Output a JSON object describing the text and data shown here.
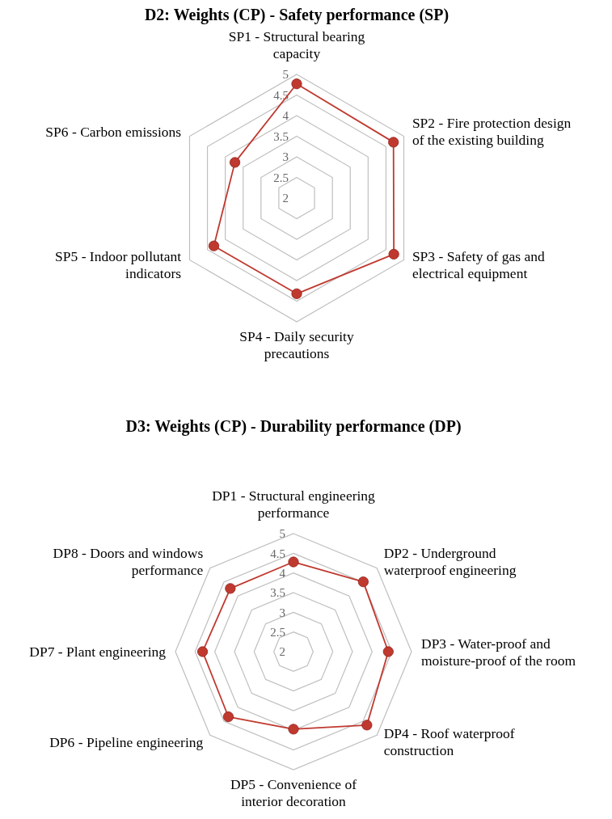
{
  "chart_data": [
    {
      "type": "radar",
      "title": "D2: Weights (CP) - Safety performance (SP)",
      "categories": [
        "SP1 - Structural bearing capacity",
        "SP2 - Fire protection design of the existing building",
        "SP3 - Safety of gas and electrical equipment",
        "SP4 - Daily security precautions",
        "SP5 - Indoor pollutant indicators",
        "SP6 - Carbon emissions"
      ],
      "series": [
        {
          "color": "#c0392f",
          "values": [
            4.77,
            4.71,
            4.72,
            4.32,
            4.32,
            3.73
          ]
        }
      ],
      "ylim": [
        2,
        5
      ],
      "yticks": [
        2,
        2.5,
        3,
        3.5,
        4,
        4.5,
        5
      ],
      "grid": true,
      "marker": "circle"
    },
    {
      "type": "radar",
      "title": "D3: Weights (CP) - Durability performance (DP)",
      "categories": [
        "DP1 - Structural engineering performance",
        "DP2 - Underground waterproof engineering",
        "DP3 - Water-proof and moisture-proof of the room",
        "DP4 - Roof waterproof construction",
        "DP5 - Convenience of interior decoration",
        "DP6 - Pipeline engineering",
        "DP7 - Plant engineering",
        "DP8 - Doors and windows performance"
      ],
      "series": [
        {
          "color": "#c0392f",
          "values": [
            4.28,
            4.51,
            4.41,
            4.64,
            3.97,
            4.34,
            4.31,
            4.27
          ]
        }
      ],
      "ylim": [
        2,
        5
      ],
      "yticks": [
        2,
        2.5,
        3,
        3.5,
        4,
        4.5,
        5
      ],
      "grid": true,
      "marker": "circle"
    }
  ]
}
